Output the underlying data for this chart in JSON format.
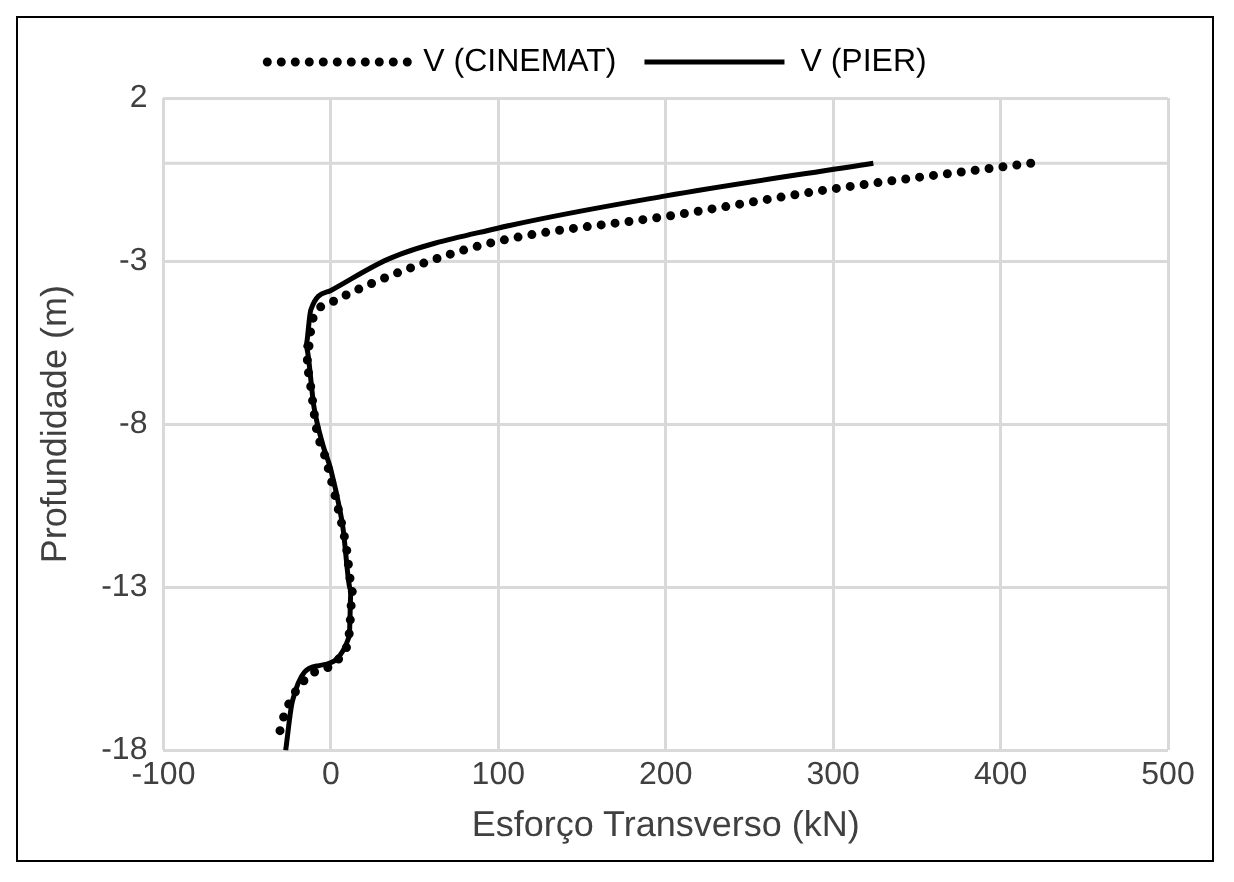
{
  "chart_data": {
    "type": "line",
    "xlabel": "Esforço Transverso (kN)",
    "ylabel": "Profundidade (m)",
    "xlim": [
      -100,
      500
    ],
    "xticks": [
      -100,
      0,
      100,
      200,
      300,
      400,
      500
    ],
    "ylim": [
      -18,
      2
    ],
    "yticks": [
      -18,
      -13,
      -8,
      -3,
      2
    ],
    "grid": true,
    "legend": "top",
    "marker": "none",
    "ref_lines": [
      {
        "axis": "y",
        "value": 0,
        "color": "#d9d9d9"
      }
    ],
    "series": [
      {
        "name": "V (CINEMAT)",
        "color": "#000000",
        "line_style": "dotted",
        "x": [
          418,
          298,
          204,
          99,
          48,
          -1,
          -11,
          -15,
          -8,
          -4,
          3,
          9,
          13,
          11,
          6,
          -15,
          -29,
          -32
        ],
        "values": [
          0,
          -0.8,
          -1.6,
          -2.4,
          -3.2,
          -4.3,
          -4.8,
          -6.2,
          -8.3,
          -8.9,
          -10.3,
          -11.7,
          -13.1,
          -14.4,
          -15.1,
          -15.8,
          -17.1,
          -17.8
        ]
      },
      {
        "name": "V (PIER)",
        "color": "#000000",
        "line_style": "solid",
        "x": [
          324,
          200,
          99,
          36,
          0,
          -12,
          -15,
          -10,
          -5,
          0,
          7,
          12,
          11,
          -7,
          -23,
          -27
        ],
        "values": [
          0,
          -1.0,
          -2.0,
          -2.9,
          -3.9,
          -4.5,
          -5.6,
          -7.5,
          -8.6,
          -9.4,
          -11.1,
          -13.1,
          -14.5,
          -15.4,
          -16.5,
          -18
        ]
      }
    ]
  }
}
